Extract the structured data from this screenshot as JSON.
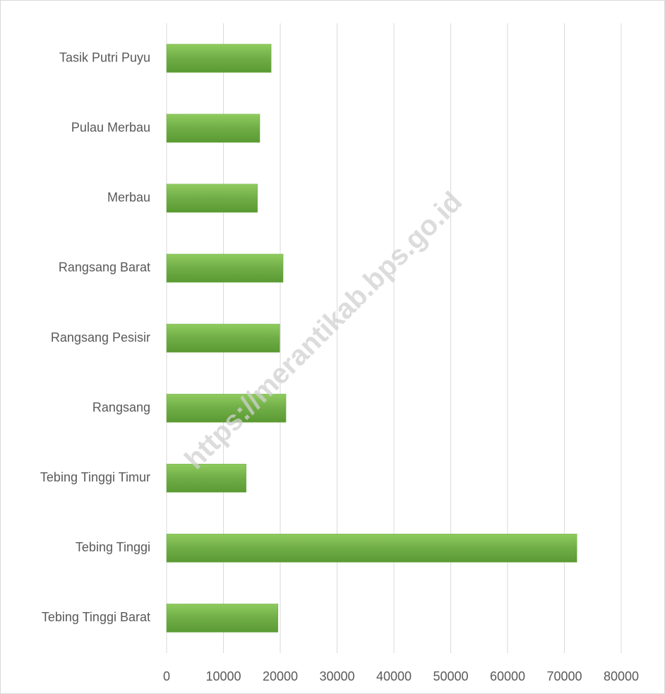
{
  "chart_data": {
    "type": "bar",
    "orientation": "horizontal",
    "categories": [
      "Tebing Tinggi Barat",
      "Tebing Tinggi",
      "Tebing Tinggi Timur",
      "Rangsang",
      "Rangsang Pesisir",
      "Rangsang Barat",
      "Merbau",
      "Pulau Merbau",
      "Tasik Putri Puyu"
    ],
    "values": [
      19600,
      72200,
      14000,
      21000,
      19900,
      20500,
      16000,
      16400,
      18400
    ],
    "color": "#70ad47",
    "xlim": [
      0,
      80000
    ],
    "xticks": [
      0,
      10000,
      20000,
      30000,
      40000,
      50000,
      60000,
      70000,
      80000
    ],
    "grid": true,
    "watermark": "https://merantikab.bps.go.id"
  }
}
